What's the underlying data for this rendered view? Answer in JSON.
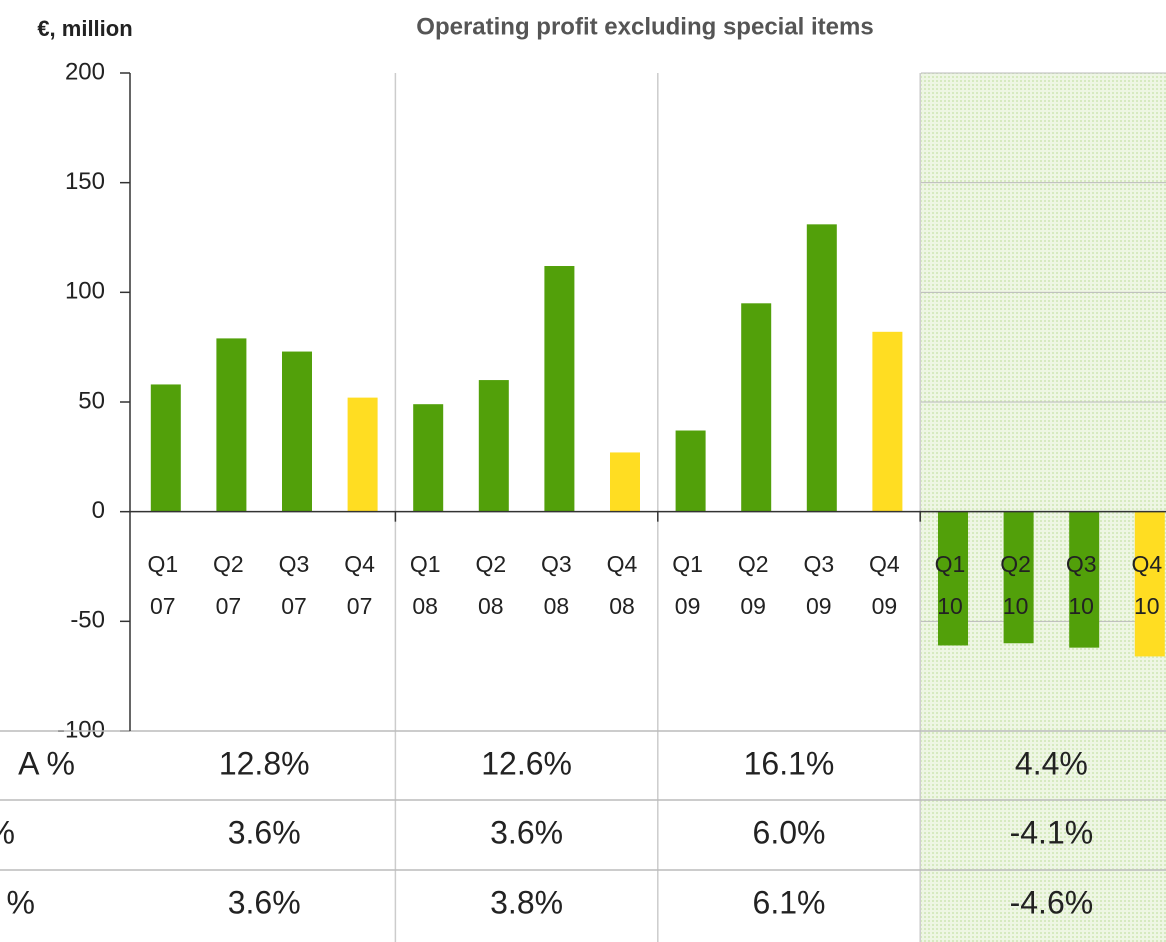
{
  "chart_data": {
    "type": "bar",
    "title": "Operating profit excluding special items",
    "unit_label": "€, million",
    "categories": [
      [
        "Q1",
        "07"
      ],
      [
        "Q2",
        "07"
      ],
      [
        "Q3",
        "07"
      ],
      [
        "Q4",
        "07"
      ],
      [
        "Q1",
        "08"
      ],
      [
        "Q2",
        "08"
      ],
      [
        "Q3",
        "08"
      ],
      [
        "Q4",
        "08"
      ],
      [
        "Q1",
        "09"
      ],
      [
        "Q2",
        "09"
      ],
      [
        "Q3",
        "09"
      ],
      [
        "Q4",
        "09"
      ],
      [
        "Q1",
        "10"
      ],
      [
        "Q2",
        "10"
      ],
      [
        "Q3",
        "10"
      ],
      [
        "Q4",
        "10"
      ]
    ],
    "values": [
      58,
      79,
      73,
      52,
      49,
      60,
      112,
      27,
      37,
      95,
      131,
      82,
      -61,
      -60,
      -62,
      -66
    ],
    "colors": [
      "#52a00a",
      "#52a00a",
      "#52a00a",
      "#ffdd22",
      "#52a00a",
      "#52a00a",
      "#52a00a",
      "#ffdd22",
      "#52a00a",
      "#52a00a",
      "#52a00a",
      "#ffdd22",
      "#52a00a",
      "#52a00a",
      "#52a00a",
      "#ffdd22"
    ],
    "ylim": [
      -100,
      200
    ],
    "yticks": [
      -100,
      -50,
      0,
      50,
      100,
      150,
      200
    ]
  },
  "table": {
    "rows": [
      {
        "label": "A %",
        "cells": [
          "12.8%",
          "12.6%",
          "16.1%",
          "4.4%"
        ]
      },
      {
        "label": "%",
        "cells": [
          "3.6%",
          "3.6%",
          "6.0%",
          "-4.1%"
        ]
      },
      {
        "label": "%",
        "cells": [
          "3.6%",
          "3.8%",
          "6.1%",
          "-4.6%"
        ]
      }
    ]
  }
}
